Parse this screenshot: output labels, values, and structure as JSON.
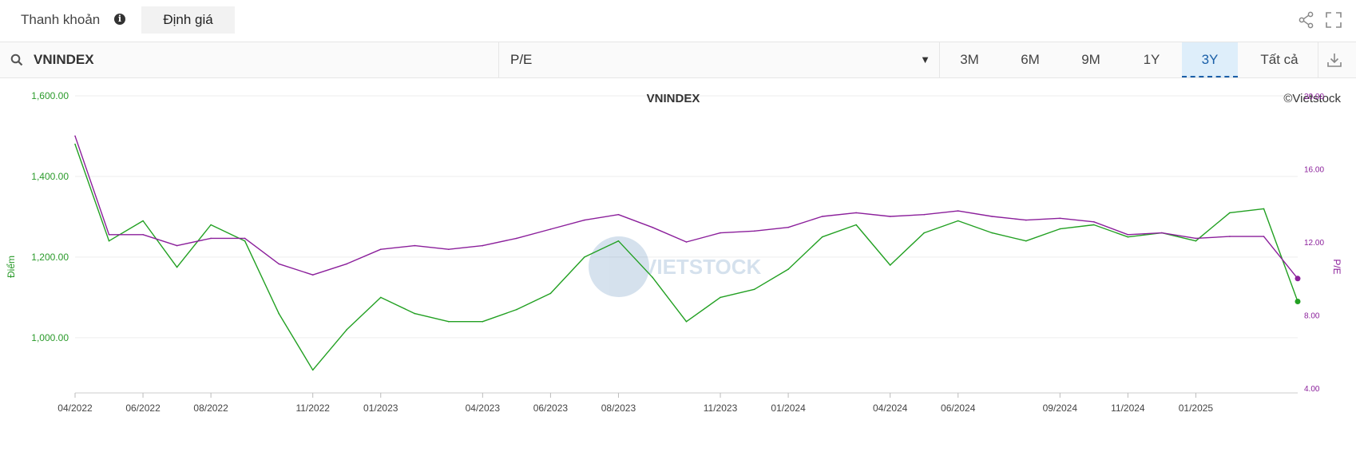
{
  "tabs": {
    "liquidity": "Thanh khoản",
    "valuation": "Định giá",
    "info_glyph": "i"
  },
  "toolbar": {
    "search_value": "VNINDEX",
    "metric_selected": "P/E",
    "ranges": [
      "3M",
      "6M",
      "9M",
      "1Y",
      "3Y",
      "Tất cả"
    ],
    "active_range": "3Y"
  },
  "icons": [
    "search-icon",
    "share-icon",
    "fullscreen-icon",
    "download-icon",
    "info-icon",
    "dropdown-arrow-icon"
  ],
  "colors": {
    "index_line": "#22a022",
    "pe_line": "#8b1f9b",
    "left_axis": "#2a9a2a",
    "right_axis": "#8b1f9b",
    "active_tab_bg": "#deeefa"
  },
  "chart_data": {
    "type": "line",
    "title": "VNINDEX",
    "credit": "©Vietstock",
    "watermark": "VIETSTOCK",
    "left_axis": {
      "label": "Điểm",
      "ticks": [
        "1,600.00",
        "1,400.00",
        "1,200.00",
        "1,000.00"
      ],
      "tick_values": [
        1600,
        1400,
        1200,
        1000
      ],
      "range": [
        875,
        1600
      ]
    },
    "right_axis": {
      "label": "P/E",
      "ticks": [
        "20.00",
        "16.00",
        "12.00",
        "8.00",
        "4.00"
      ],
      "tick_values": [
        20,
        16,
        12,
        8,
        4
      ],
      "range": [
        4,
        20
      ]
    },
    "x_ticks": [
      "04/2022",
      "06/2022",
      "08/2022",
      "11/2022",
      "01/2023",
      "04/2023",
      "06/2023",
      "08/2023",
      "11/2023",
      "01/2024",
      "04/2024",
      "06/2024",
      "09/2024",
      "11/2024",
      "01/2025"
    ],
    "grid": "horizontal",
    "x": [
      "04/2022",
      "05/2022",
      "06/2022",
      "07/2022",
      "08/2022",
      "09/2022",
      "10/2022",
      "11/2022",
      "12/2022",
      "01/2023",
      "02/2023",
      "03/2023",
      "04/2023",
      "05/2023",
      "06/2023",
      "07/2023",
      "08/2023",
      "09/2023",
      "10/2023",
      "11/2023",
      "12/2023",
      "01/2024",
      "02/2024",
      "03/2024",
      "04/2024",
      "05/2024",
      "06/2024",
      "07/2024",
      "08/2024",
      "09/2024",
      "10/2024",
      "11/2024",
      "12/2024",
      "01/2025",
      "02/2025",
      "03/2025",
      "04/2025"
    ],
    "series": [
      {
        "name": "VNINDEX",
        "axis": "left",
        "values": [
          1480,
          1240,
          1290,
          1175,
          1280,
          1240,
          1060,
          920,
          1020,
          1100,
          1060,
          1040,
          1040,
          1070,
          1110,
          1200,
          1240,
          1150,
          1040,
          1100,
          1120,
          1170,
          1250,
          1280,
          1180,
          1260,
          1290,
          1260,
          1240,
          1270,
          1280,
          1250,
          1260,
          1240,
          1310,
          1320,
          1090
        ]
      },
      {
        "name": "P/E",
        "axis": "right",
        "values": [
          17.8,
          12.4,
          12.4,
          11.8,
          12.2,
          12.2,
          10.8,
          10.2,
          10.8,
          11.6,
          11.8,
          11.6,
          11.8,
          12.2,
          12.7,
          13.2,
          13.5,
          12.8,
          12.0,
          12.5,
          12.6,
          12.8,
          13.4,
          13.6,
          13.4,
          13.5,
          13.7,
          13.4,
          13.2,
          13.3,
          13.1,
          12.4,
          12.5,
          12.2,
          12.3,
          12.3,
          10.0
        ]
      }
    ]
  }
}
